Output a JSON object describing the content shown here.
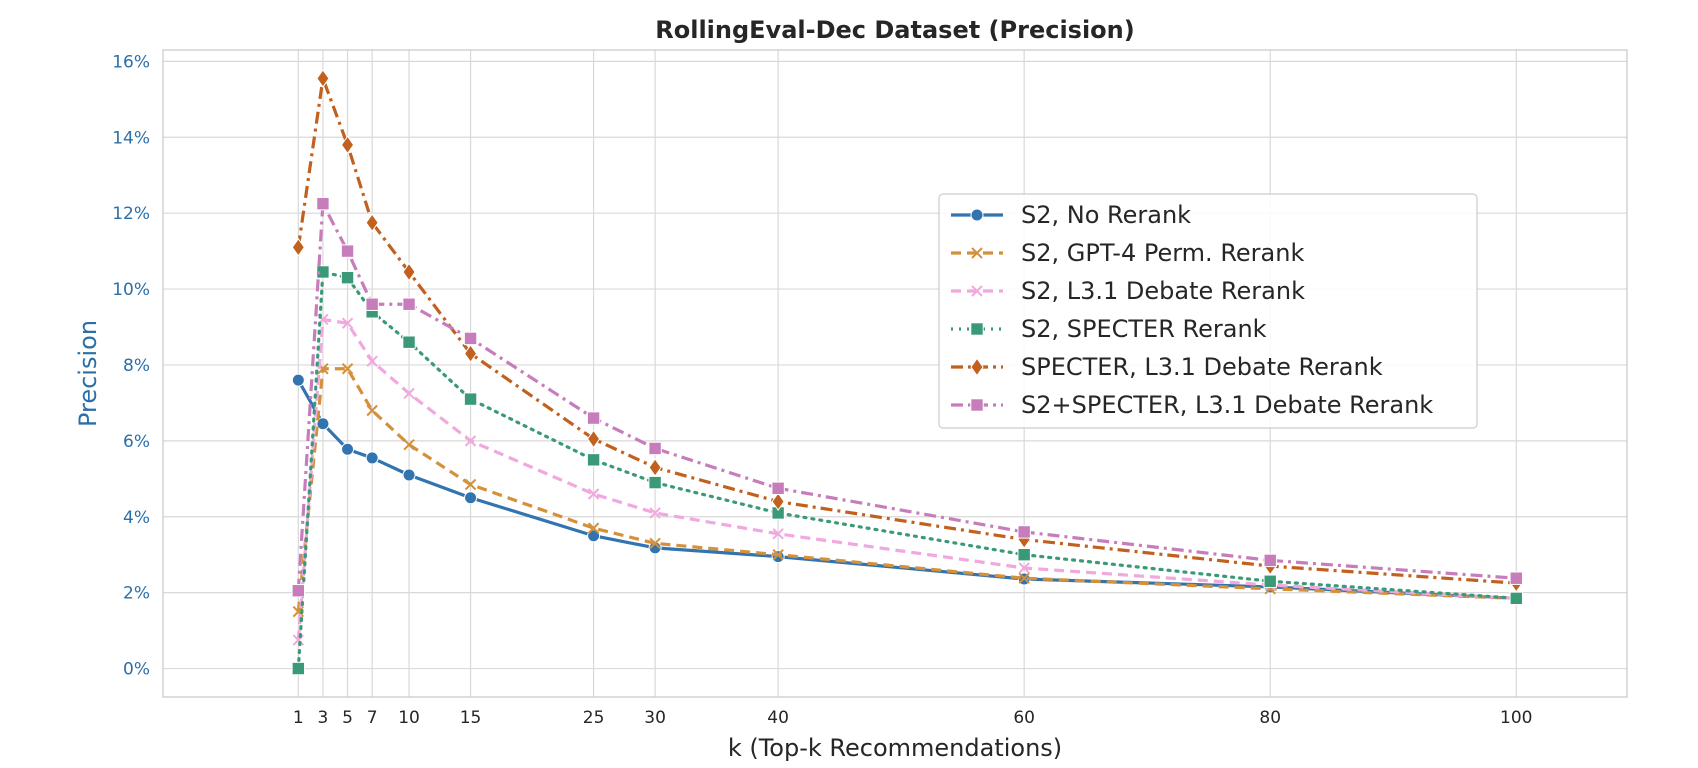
{
  "chart_data": {
    "type": "line",
    "title": "RollingEval-Dec Dataset (Precision)",
    "xlabel": "k (Top-k Recommendations)",
    "ylabel": "Precision",
    "x": [
      1,
      3,
      5,
      7,
      10,
      15,
      25,
      30,
      40,
      60,
      80,
      100
    ],
    "x_tick_labels": [
      "1",
      "3",
      "5",
      "7",
      "10",
      "15",
      "25",
      "30",
      "40",
      "60",
      "80",
      "100"
    ],
    "xlim": [
      -10,
      109
    ],
    "ylim": [
      -0.75,
      16.3
    ],
    "y_ticks": [
      0,
      2,
      4,
      6,
      8,
      10,
      12,
      14,
      16
    ],
    "y_tick_labels": [
      "0%",
      "2%",
      "4%",
      "6%",
      "8%",
      "10%",
      "12%",
      "14%",
      "16%"
    ],
    "y_unit": "%",
    "grid": true,
    "legend_position": "center-right",
    "series": [
      {
        "name": "S2, No Rerank",
        "color": "#3274b0",
        "line_style": "solid",
        "marker": "circle",
        "values": [
          7.6,
          6.45,
          5.78,
          5.55,
          5.1,
          4.5,
          3.5,
          3.18,
          2.95,
          2.36,
          2.15,
          1.85
        ]
      },
      {
        "name": "S2, GPT-4 Perm. Rerank",
        "color": "#d4913a",
        "line_style": "dashed",
        "marker": "x",
        "values": [
          1.5,
          7.9,
          7.9,
          6.8,
          5.9,
          4.85,
          3.7,
          3.3,
          3.0,
          2.38,
          2.1,
          1.85
        ]
      },
      {
        "name": "S2, L3.1 Debate Rerank",
        "color": "#f0a8de",
        "line_style": "dashed",
        "marker": "x",
        "values": [
          0.75,
          9.2,
          9.1,
          8.1,
          7.25,
          6.0,
          4.6,
          4.1,
          3.55,
          2.65,
          2.2,
          1.85
        ]
      },
      {
        "name": "S2, SPECTER Rerank",
        "color": "#3a9a78",
        "line_style": "dotted",
        "marker": "square",
        "values": [
          0.0,
          10.45,
          10.3,
          9.4,
          8.6,
          7.1,
          5.5,
          4.9,
          4.1,
          3.0,
          2.3,
          1.85
        ]
      },
      {
        "name": "SPECTER, L3.1 Debate Rerank",
        "color": "#c2601e",
        "line_style": "dashdot",
        "marker": "diamond",
        "values": [
          11.1,
          15.55,
          13.8,
          11.75,
          10.45,
          8.3,
          6.05,
          5.3,
          4.4,
          3.4,
          2.7,
          2.25
        ]
      },
      {
        "name": "S2+SPECTER, L3.1 Debate Rerank",
        "color": "#c77dbb",
        "line_style": "dashdot",
        "marker": "square",
        "values": [
          2.05,
          12.25,
          11.0,
          9.6,
          9.6,
          8.7,
          6.6,
          5.8,
          4.75,
          3.6,
          2.85,
          2.38
        ]
      }
    ]
  }
}
